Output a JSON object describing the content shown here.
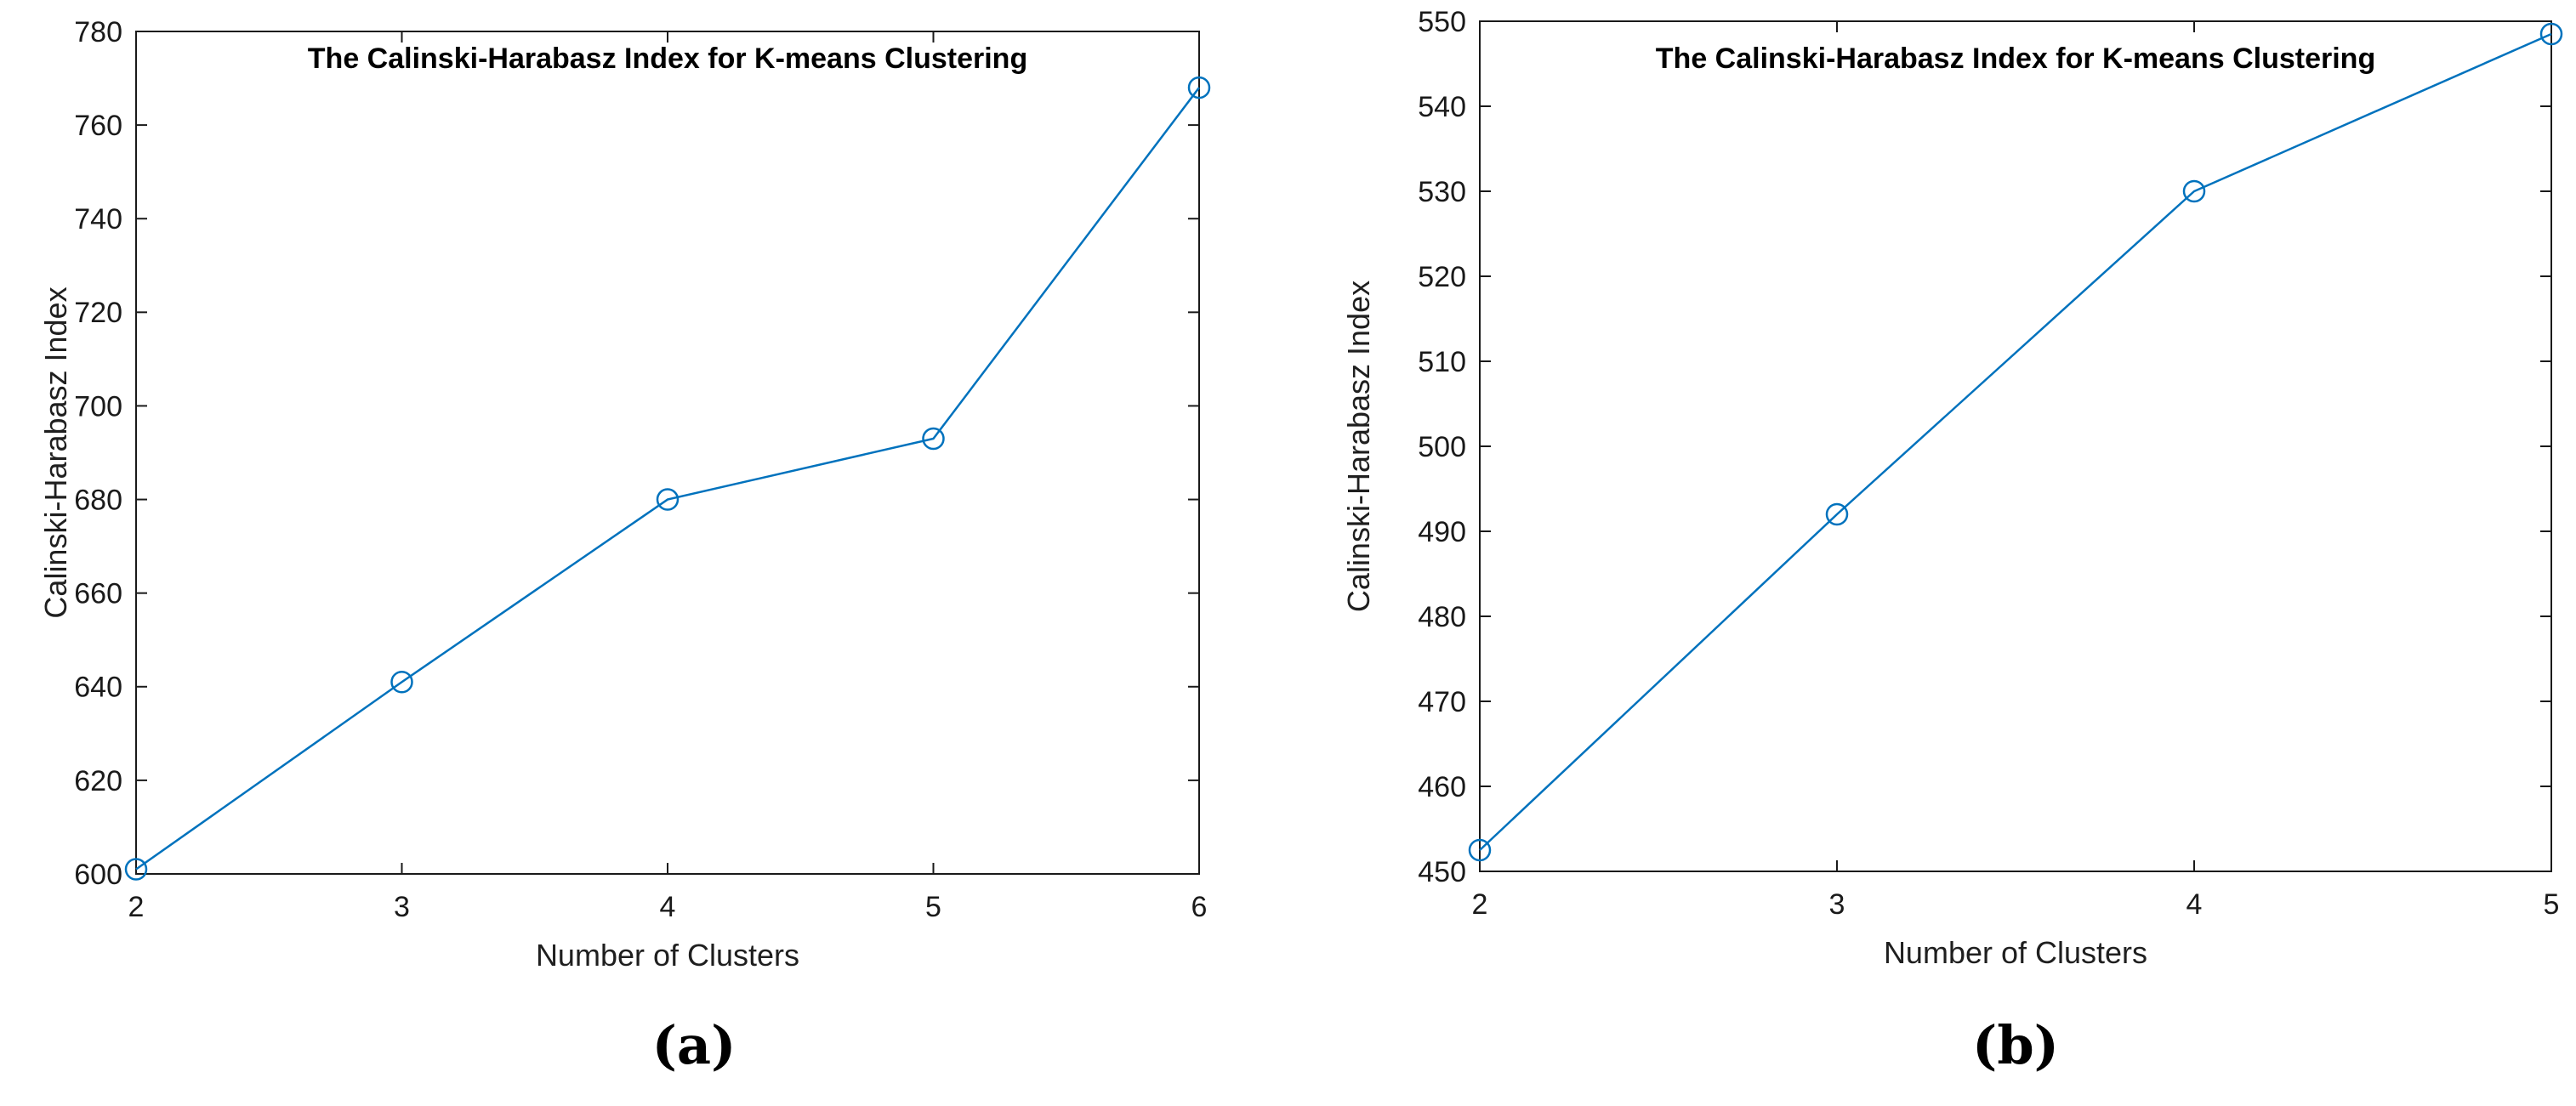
{
  "figure": {
    "background": "#ffffff",
    "axis_color": "#1a1a1a",
    "text_color": "#000000"
  },
  "chart_data": [
    {
      "type": "line",
      "title": "The Calinski-Harabasz Index for K-means Clustering",
      "xlabel": "Number of Clusters",
      "ylabel": "Calinski-Harabasz Index",
      "caption": "(a)",
      "x": [
        2,
        3,
        4,
        5,
        6
      ],
      "y": [
        601,
        641,
        680,
        693,
        768
      ],
      "xlim": [
        2,
        6
      ],
      "ylim": [
        600,
        780
      ],
      "x_ticks": [
        2,
        3,
        4,
        5,
        6
      ],
      "y_ticks": [
        600,
        620,
        640,
        660,
        680,
        700,
        720,
        740,
        760,
        780
      ],
      "line_color": "#0072BD",
      "marker": "circle",
      "grid": false,
      "legend": "none"
    },
    {
      "type": "line",
      "title": "The Calinski-Harabasz Index for K-means Clustering",
      "xlabel": "Number of Clusters",
      "ylabel": "Calinski-Harabasz Index",
      "caption": "(b)",
      "x": [
        2,
        3,
        4,
        5
      ],
      "y": [
        452.5,
        492,
        530,
        548.5
      ],
      "xlim": [
        2,
        5
      ],
      "ylim": [
        450,
        550
      ],
      "x_ticks": [
        2,
        3,
        4,
        5
      ],
      "y_ticks": [
        450,
        460,
        470,
        480,
        490,
        500,
        510,
        520,
        530,
        540,
        550
      ],
      "line_color": "#0072BD",
      "marker": "circle",
      "grid": false,
      "legend": "none"
    }
  ]
}
